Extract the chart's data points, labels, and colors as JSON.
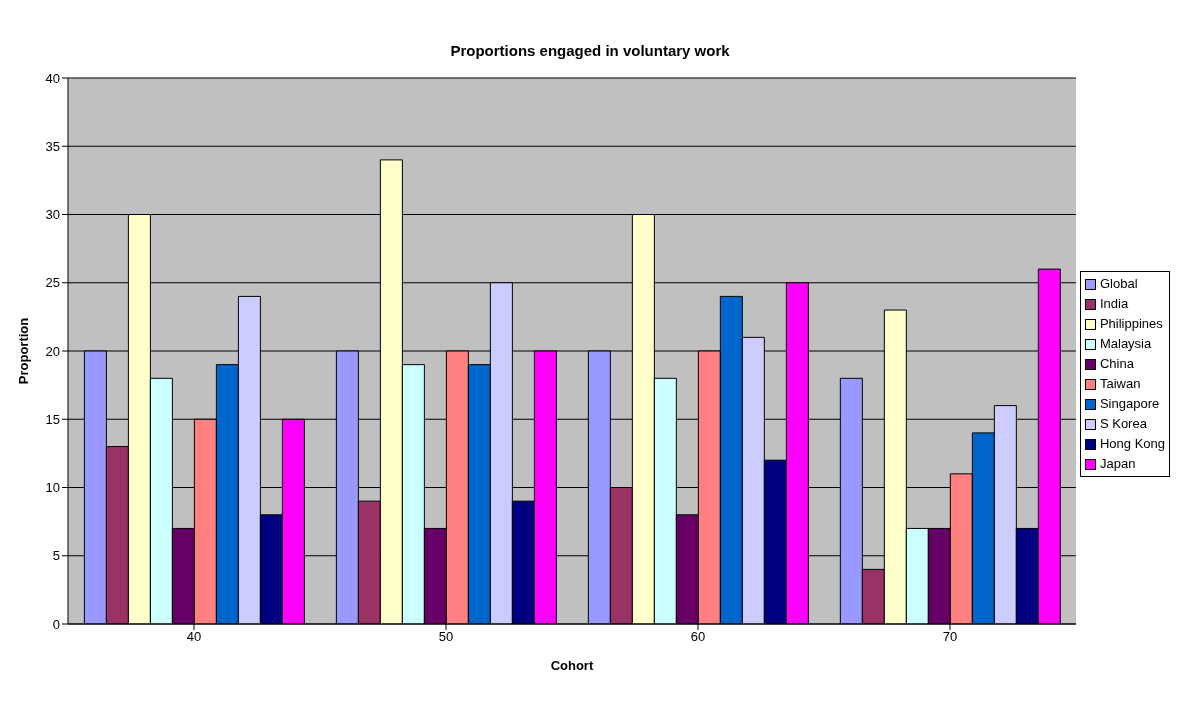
{
  "chart_data": {
    "type": "bar",
    "title": "Proportions engaged in voluntary work",
    "xlabel": "Cohort",
    "ylabel": "Proportion",
    "categories": [
      "40",
      "50",
      "60",
      "70"
    ],
    "series": [
      {
        "name": "Global",
        "color": "#9999ff",
        "values": [
          20,
          20,
          20,
          18
        ]
      },
      {
        "name": "India",
        "color": "#993366",
        "values": [
          13,
          9,
          10,
          4
        ]
      },
      {
        "name": "Philippines",
        "color": "#ffffcc",
        "values": [
          30,
          34,
          30,
          23
        ]
      },
      {
        "name": "Malaysia",
        "color": "#ccffff",
        "values": [
          18,
          19,
          18,
          7
        ]
      },
      {
        "name": "China",
        "color": "#660066",
        "values": [
          7,
          7,
          8,
          7
        ]
      },
      {
        "name": "Taiwan",
        "color": "#ff8080",
        "values": [
          15,
          20,
          20,
          11
        ]
      },
      {
        "name": "Singapore",
        "color": "#0066cc",
        "values": [
          19,
          19,
          24,
          14
        ]
      },
      {
        "name": "S Korea",
        "color": "#ccccff",
        "values": [
          24,
          25,
          21,
          16
        ]
      },
      {
        "name": "Hong Kong",
        "color": "#000080",
        "values": [
          8,
          9,
          12,
          7
        ]
      },
      {
        "name": "Japan",
        "color": "#ff00ff",
        "values": [
          15,
          20,
          25,
          26
        ]
      }
    ],
    "ylim": [
      0,
      40
    ],
    "yticks": [
      0,
      5,
      10,
      15,
      20,
      25,
      30,
      35,
      40
    ],
    "grid": "y",
    "legend": "right"
  }
}
